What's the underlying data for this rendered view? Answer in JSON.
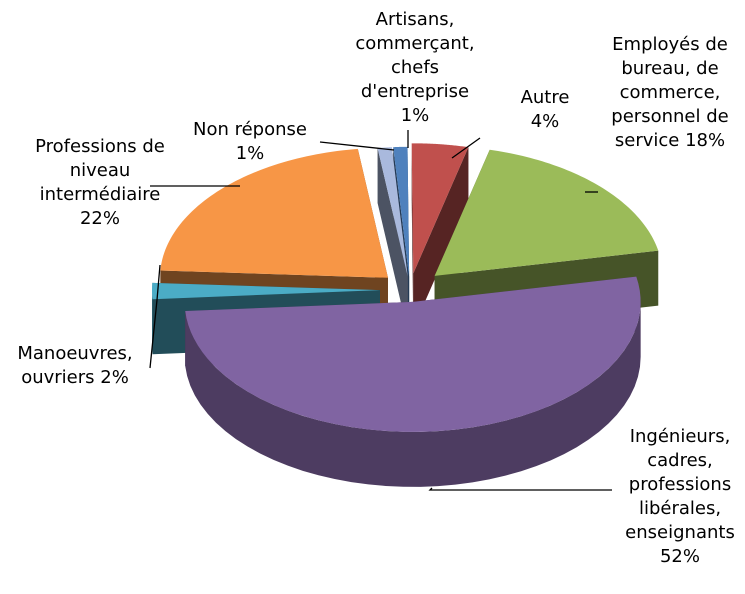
{
  "chart_data": {
    "type": "pie",
    "categories": [
      "Artisans, commerçant, chefs d'entreprise",
      "Autre",
      "Employés de bureau, de commerce, personnel de service",
      "Ingénieurs, cadres, professions libérales, enseignants",
      "Manoeuvres, ouvriers",
      "Professions de niveau intermédiaire",
      "Non réponse"
    ],
    "values": [
      1,
      4,
      18,
      52,
      2,
      22,
      1
    ],
    "value_labels": [
      "1%",
      "4%",
      "18%",
      "52%",
      "2%",
      "22%",
      "1%"
    ],
    "colors": [
      "#4f81bd",
      "#c0504d",
      "#9bbb59",
      "#8064a2",
      "#4bacc6",
      "#f79646",
      "#a9b9dd"
    ]
  }
}
